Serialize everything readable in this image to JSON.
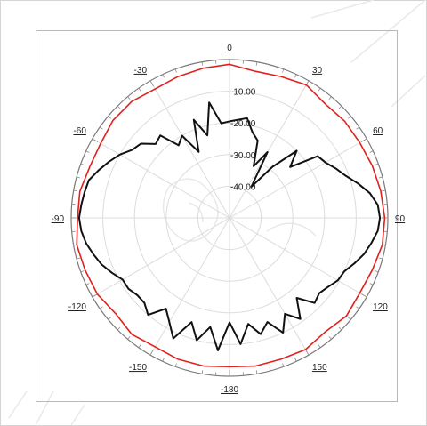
{
  "chart_data": {
    "type": "polar-line",
    "angle_unit": "degrees",
    "angle_zero": "top",
    "angle_direction": "clockwise",
    "radial_range": [
      -50,
      0
    ],
    "radial_ticks": [
      "-10.00",
      "-20.00",
      "-30.00",
      "-40.00"
    ],
    "radial_tick_values": [
      -10,
      -20,
      -30,
      -40
    ],
    "angle_ticks": [
      "0",
      "30",
      "60",
      "90",
      "120",
      "150",
      "-180",
      "-150",
      "-120",
      "-90",
      "-60",
      "-30"
    ],
    "angle_tick_values": [
      0,
      30,
      60,
      90,
      120,
      150,
      180,
      210,
      240,
      270,
      300,
      330
    ],
    "grid": true,
    "series": [
      {
        "color": "#e0211d",
        "points": [
          [
            0,
            -1.5
          ],
          [
            10,
            -3
          ],
          [
            20,
            -2.5
          ],
          [
            30,
            -1.5
          ],
          [
            40,
            -3
          ],
          [
            50,
            -2.5
          ],
          [
            60,
            -2.5
          ],
          [
            70,
            -2
          ],
          [
            80,
            -1.5
          ],
          [
            90,
            -1
          ],
          [
            100,
            -1
          ],
          [
            110,
            -2
          ],
          [
            120,
            -2.5
          ],
          [
            130,
            -1.8
          ],
          [
            140,
            -3
          ],
          [
            150,
            -2
          ],
          [
            160,
            -2.5
          ],
          [
            170,
            -2.5
          ],
          [
            180,
            -3
          ],
          [
            190,
            -2.5
          ],
          [
            200,
            -2.5
          ],
          [
            210,
            -3
          ],
          [
            220,
            -2
          ],
          [
            230,
            -3
          ],
          [
            240,
            -1.8
          ],
          [
            250,
            -1.5
          ],
          [
            260,
            -1
          ],
          [
            270,
            -2
          ],
          [
            280,
            -2
          ],
          [
            290,
            -3
          ],
          [
            300,
            -3
          ],
          [
            310,
            -2
          ],
          [
            320,
            -2
          ],
          [
            330,
            -3
          ],
          [
            340,
            -2.5
          ],
          [
            350,
            -2
          ]
        ]
      },
      {
        "color": "#111111",
        "points": [
          [
            0,
            -19.5
          ],
          [
            10,
            -18
          ],
          [
            15,
            -22
          ],
          [
            20,
            -24
          ],
          [
            25,
            -32
          ],
          [
            30,
            -26
          ],
          [
            35,
            -38
          ],
          [
            40,
            -29
          ],
          [
            45,
            -20
          ],
          [
            50,
            -25
          ],
          [
            55,
            -16
          ],
          [
            60,
            -15
          ],
          [
            65,
            -13
          ],
          [
            70,
            -11
          ],
          [
            75,
            -8
          ],
          [
            80,
            -5
          ],
          [
            85,
            -3
          ],
          [
            90,
            -2.5
          ],
          [
            95,
            -3
          ],
          [
            100,
            -4.5
          ],
          [
            105,
            -6
          ],
          [
            110,
            -8
          ],
          [
            115,
            -10
          ],
          [
            120,
            -10.5
          ],
          [
            125,
            -12
          ],
          [
            130,
            -13
          ],
          [
            135,
            -12
          ],
          [
            140,
            -17
          ],
          [
            145,
            -11
          ],
          [
            150,
            -15
          ],
          [
            155,
            -10
          ],
          [
            160,
            -15
          ],
          [
            165,
            -12
          ],
          [
            170,
            -16
          ],
          [
            175,
            -10
          ],
          [
            180,
            -17
          ],
          [
            185,
            -8
          ],
          [
            190,
            -15
          ],
          [
            195,
            -10
          ],
          [
            200,
            -15
          ],
          [
            205,
            -8
          ],
          [
            210,
            -12
          ],
          [
            215,
            -15
          ],
          [
            220,
            -10
          ],
          [
            225,
            -12
          ],
          [
            230,
            -12
          ],
          [
            235,
            -11
          ],
          [
            240,
            -11
          ],
          [
            245,
            -9
          ],
          [
            250,
            -7
          ],
          [
            255,
            -5.5
          ],
          [
            260,
            -4
          ],
          [
            265,
            -3
          ],
          [
            270,
            -2.5
          ],
          [
            275,
            -3
          ],
          [
            280,
            -3.5
          ],
          [
            285,
            -4
          ],
          [
            290,
            -6
          ],
          [
            295,
            -8
          ],
          [
            300,
            -10
          ],
          [
            305,
            -12.5
          ],
          [
            310,
            -13.5
          ],
          [
            315,
            -17
          ],
          [
            320,
            -16
          ],
          [
            325,
            -22
          ],
          [
            330,
            -20
          ],
          [
            335,
            -27
          ],
          [
            340,
            -17
          ],
          [
            345,
            -23
          ],
          [
            350,
            -13
          ],
          [
            355,
            -20
          ],
          [
            360,
            -19.5
          ]
        ]
      }
    ]
  }
}
